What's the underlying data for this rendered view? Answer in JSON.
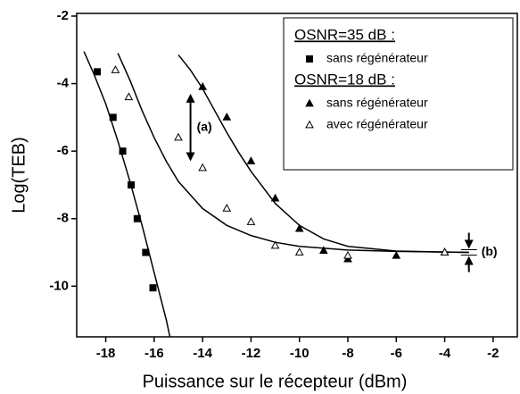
{
  "chart_data": {
    "type": "scatter",
    "xlabel": "Puissance sur le récepteur (dBm)",
    "ylabel": "Log(TEB)",
    "xlim": [
      -19.2,
      -1.0
    ],
    "ylim": [
      -11.5,
      -2
    ],
    "xticks": [
      -18,
      -16,
      -14,
      -12,
      -10,
      -8,
      -6,
      -4,
      -2
    ],
    "yticks": [
      -2,
      -4,
      -6,
      -8,
      -10
    ],
    "groups": [
      {
        "title": "OSNR=35 dB  :",
        "series": [
          {
            "name": "sans régénérateur",
            "marker": "square",
            "color": "#000000",
            "x": [
              -18.35,
              -17.7,
              -17.3,
              -16.95,
              -16.7,
              -16.35,
              -16.05
            ],
            "values": [
              -3.65,
              -5.0,
              -6.0,
              -7.0,
              -8.0,
              -9.0,
              -10.05
            ]
          }
        ]
      },
      {
        "title": "OSNR=18 dB :",
        "series": [
          {
            "name": "sans régénérateur",
            "marker": "triangle",
            "color": "#000000",
            "x": [
              -14,
              -13,
              -12,
              -11,
              -10,
              -9,
              -8,
              -6,
              -4
            ],
            "values": [
              -4.1,
              -5.0,
              -6.3,
              -7.4,
              -8.3,
              -8.95,
              -9.2,
              -9.1,
              -9.0
            ]
          },
          {
            "name": "avec régénérateur",
            "marker": "triangle-open",
            "color": "#000000",
            "x": [
              -17.6,
              -17.05,
              -15.0,
              -14,
              -13,
              -12,
              -11,
              -10,
              -8,
              -4
            ],
            "values": [
              -3.6,
              -4.4,
              -5.6,
              -6.5,
              -7.7,
              -8.1,
              -8.8,
              -9.0,
              -9.1,
              -9.0
            ]
          }
        ]
      }
    ],
    "fits": [
      {
        "x": [
          -18.9,
          -18.5,
          -18.0,
          -17.5,
          -17.0,
          -16.5,
          -16.0,
          -15.5,
          -15.35
        ],
        "y": [
          -3.05,
          -3.7,
          -4.6,
          -5.7,
          -6.9,
          -8.2,
          -9.6,
          -11.0,
          -11.5
        ]
      },
      {
        "x": [
          -17.5,
          -17.0,
          -16.5,
          -16.0,
          -15.5,
          -15.0,
          -14.0,
          -13.0,
          -12.0,
          -11.0,
          -10.0,
          -8.0,
          -6.0,
          -4.0,
          -3.0
        ],
        "y": [
          -3.1,
          -3.9,
          -4.8,
          -5.6,
          -6.3,
          -6.9,
          -7.7,
          -8.2,
          -8.5,
          -8.7,
          -8.82,
          -8.93,
          -8.97,
          -8.99,
          -9.0
        ]
      },
      {
        "x": [
          -15.0,
          -14.5,
          -14.0,
          -13.5,
          -13.0,
          -12.5,
          -12.0,
          -11.0,
          -10.0,
          -9.0,
          -8.0,
          -6.0,
          -4.0,
          -3.0
        ],
        "y": [
          -3.15,
          -3.6,
          -4.15,
          -4.8,
          -5.45,
          -6.05,
          -6.6,
          -7.55,
          -8.2,
          -8.6,
          -8.82,
          -8.96,
          -8.99,
          -9.0
        ]
      }
    ],
    "annotations": [
      {
        "text": "(a)",
        "x": -14.5,
        "y1": -4.3,
        "y2": -6.3
      },
      {
        "text": "(b)",
        "x": -3.0,
        "y": -9.0
      }
    ]
  }
}
